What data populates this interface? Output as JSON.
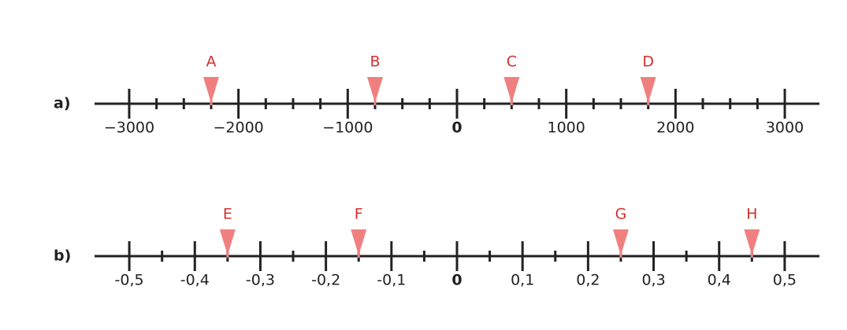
{
  "lines": [
    {
      "label": "a)",
      "xlim": [
        -3317,
        3317
      ],
      "ticks": [
        {
          "value": -3000,
          "label": "−3000"
        },
        {
          "value": -2000,
          "label": "−2000"
        },
        {
          "value": -1000,
          "label": "−1000"
        },
        0,
        1000,
        2000,
        3000
      ],
      "minor_ticks": [
        -2750,
        -2500,
        -2250,
        -1750,
        -1500,
        -1250,
        -750,
        -500,
        -250,
        250,
        500,
        750,
        1250,
        1500,
        1750,
        2250,
        2500,
        2750
      ],
      "markers": [
        {
          "label": "A",
          "value": -2250
        },
        {
          "label": "B",
          "value": -750
        },
        {
          "label": "C",
          "value": 500
        },
        {
          "label": "D",
          "value": 1750
        }
      ]
    },
    {
      "label": "b)",
      "xlim": [
        -0.553,
        0.553
      ],
      "ticks": [
        {
          "value": -0.5,
          "label": "-0,5"
        },
        {
          "value": -0.4,
          "label": "-0,4"
        },
        {
          "value": -0.3,
          "label": "-0,3"
        },
        {
          "value": -0.2,
          "label": "-0,2"
        },
        {
          "value": -0.1,
          "label": "-0,1"
        },
        0,
        {
          "value": 0.1,
          "label": "0,1"
        },
        {
          "value": 0.2,
          "label": "0,2"
        },
        {
          "value": 0.3,
          "label": "0,3"
        },
        {
          "value": 0.4,
          "label": "0,4"
        },
        {
          "value": 0.5,
          "label": "0,5"
        }
      ],
      "minor_ticks": [
        -0.45,
        -0.35,
        -0.25,
        -0.15,
        -0.05,
        0.05,
        0.15,
        0.25,
        0.35,
        0.45
      ],
      "markers": [
        {
          "label": "E",
          "value": -0.35
        },
        {
          "label": "F",
          "value": -0.15
        },
        {
          "label": "G",
          "value": 0.25
        },
        {
          "label": "H",
          "value": 0.45
        }
      ]
    }
  ]
}
